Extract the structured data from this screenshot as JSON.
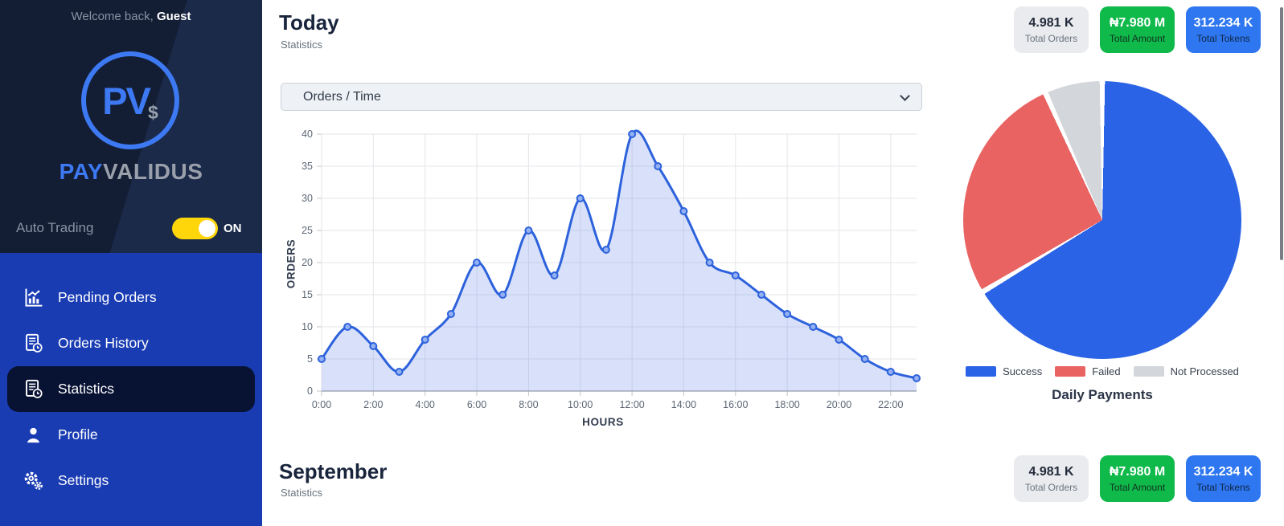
{
  "colors": {
    "sidebar_dark": "#131e35",
    "sidebar_menu_blue": "#1a3cb3",
    "active_item_bg": "#081334",
    "accent_blue": "#3d79f2",
    "toggle_yellow": "#ffd60a",
    "heading": "#19253c"
  },
  "sidebar": {
    "welcome_prefix": "Welcome back, ",
    "welcome_name": "Guest",
    "logo": {
      "letters": "PV",
      "dollar": "$",
      "brand_primary": "PAY",
      "brand_secondary": "VALIDUS"
    },
    "auto_trading": {
      "label": "Auto Trading",
      "state": "ON"
    },
    "menu": [
      {
        "label": "Pending Orders",
        "icon": "bar-chart-icon",
        "active": false
      },
      {
        "label": "Orders History",
        "icon": "list-clock-icon",
        "active": false
      },
      {
        "label": "Statistics",
        "icon": "list-clock-icon",
        "active": true
      },
      {
        "label": "Profile",
        "icon": "user-icon",
        "active": false
      },
      {
        "label": "Settings",
        "icon": "gears-icon",
        "active": false
      }
    ]
  },
  "sections": {
    "today": {
      "title": "Today",
      "subtitle": "Statistics",
      "filter_value": "Orders / Time"
    },
    "september": {
      "title": "September",
      "subtitle": "Statistics"
    }
  },
  "stat_cards": [
    {
      "value": "4.981 K",
      "label": "Total Orders",
      "bg": "#e9ebee",
      "value_color": "#222b3a",
      "label_color": "#6b7480"
    },
    {
      "value": "₦7.980 M",
      "label": "Total Amount",
      "bg": "#0fb94a",
      "value_color": "#ffffff",
      "label_color": "#123220"
    },
    {
      "value": "312.234 K",
      "label": "Total Tokens",
      "bg": "#2e77f0",
      "value_color": "#ffffff",
      "label_color": "#102644"
    }
  ],
  "chart_data": [
    {
      "type": "area",
      "title": "Orders / Time",
      "x_hours": [
        0,
        1,
        2,
        3,
        4,
        5,
        6,
        7,
        8,
        9,
        10,
        11,
        12,
        13,
        14,
        15,
        16,
        17,
        18,
        19,
        20,
        21,
        22,
        23
      ],
      "values": [
        5,
        10,
        7,
        3,
        8,
        12,
        20,
        15,
        25,
        18,
        30,
        22,
        40,
        35,
        28,
        20,
        18,
        15,
        12,
        10,
        8,
        5,
        3,
        2
      ],
      "x_labels": [
        "0:00",
        "2:00",
        "4:00",
        "6:00",
        "8:00",
        "10:00",
        "12:00",
        "14:00",
        "16:00",
        "18:00",
        "20:00",
        "22:00"
      ],
      "xlabel": "HOURS",
      "ylabel": "ORDERS",
      "ylim": [
        0,
        40
      ],
      "ytick_step": 5,
      "grid": true,
      "line_color": "#2d62dc",
      "marker_fill": "#93b1f2",
      "fill_color": "rgba(80,118,230,0.22)"
    },
    {
      "type": "pie",
      "title": "Daily Payments",
      "legend_position": "bottom",
      "slices": [
        {
          "label": "Success",
          "percent": 66.4,
          "color": "#2a63e6"
        },
        {
          "label": "Failed",
          "percent": 26.9,
          "color": "#ea6363"
        },
        {
          "label": "Not Processed",
          "percent": 6.7,
          "color": "#d3d6da"
        }
      ]
    }
  ]
}
